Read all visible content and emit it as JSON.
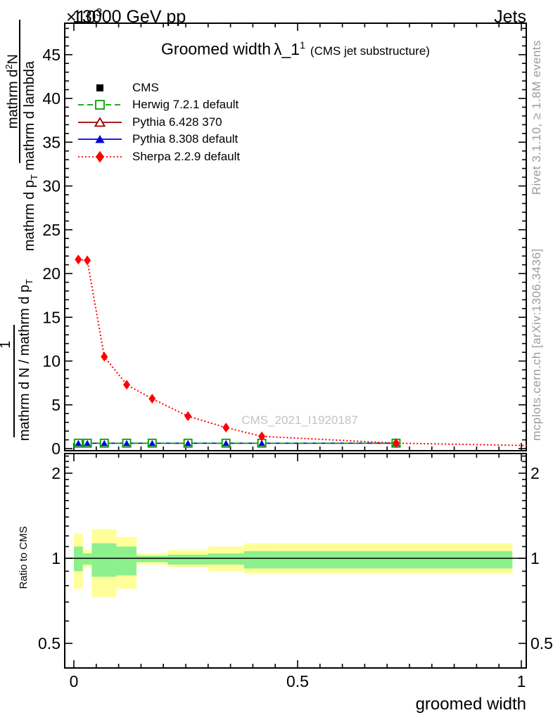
{
  "header": {
    "exponent_base": "×10",
    "exponent_power": "3",
    "beam_label": "13000 GeV pp",
    "right_label": "Jets"
  },
  "plot_title": {
    "prefix": "Groomed width",
    "lambda": "λ_1",
    "lambda_sup": "1",
    "suffix": "(CMS jet substructure)"
  },
  "watermark": "CMS_2021_I1920187",
  "side_notes": {
    "top": "Rivet 3.1.10, ≥ 1.8M events",
    "bottom": "mcplots.cern.ch [arXiv:1306.3436]"
  },
  "ylabel_fractions": {
    "top": {
      "num_pre": "mathrm d",
      "num_sup": "2",
      "num_post": "N",
      "den_pre": "mathrm d p",
      "den_sub": "T",
      "den_post": " mathrm d lambda"
    },
    "bottom": {
      "num": "1",
      "den_pre": "mathrm d N / mathrm d p",
      "den_sub": "T"
    }
  },
  "ratio_ylabel": "Ratio to CMS",
  "xlabel": "groomed width",
  "chart_data": {
    "type": "line",
    "title": "Groomed width λ_1^1 (CMS jet substructure)",
    "xlabel": "groomed width",
    "ylabel": "1 / (mathrm d N / mathrm d p_T) · mathrm d^2 N / (mathrm d p_T mathrm d lambda)",
    "scale_note": "×10^3",
    "xlim": [
      -0.021,
      1.021
    ],
    "ylim_main": [
      0,
      48.6
    ],
    "ylim_ratio": [
      0.41,
      2.36
    ],
    "ratio_scale": "log",
    "grid": false,
    "legend_position": "upper-left",
    "x_ticks": {
      "major": [
        0,
        0.5,
        1
      ],
      "labels": [
        "0",
        "0.5",
        "1"
      ],
      "minor_step": 0.05
    },
    "y_ticks_main": {
      "major": [
        0,
        5,
        10,
        15,
        20,
        25,
        30,
        35,
        40,
        45
      ],
      "labels": [
        "0",
        "5",
        "10",
        "15",
        "20",
        "25",
        "30",
        "35",
        "40",
        "45"
      ],
      "minor_step": 1
    },
    "y_ticks_ratio": {
      "major": [
        0.5,
        1,
        2
      ],
      "labels": [
        "0.5",
        "1",
        "2"
      ]
    },
    "bin_edges": [
      0,
      0.02,
      0.04,
      0.095,
      0.14,
      0.21,
      0.3,
      0.38,
      0.46,
      0.98
    ],
    "bin_centers": [
      0.01,
      0.03,
      0.068,
      0.118,
      0.175,
      0.255,
      0.34,
      0.42,
      0.72
    ],
    "series": [
      {
        "name": "CMS",
        "color": "#000000",
        "marker": "square-filled",
        "line": "none",
        "values": [
          0.45,
          0.45,
          0.45,
          0.45,
          0.45,
          0.45,
          0.45,
          0.45,
          0.45
        ]
      },
      {
        "name": "Herwig 7.2.1 default",
        "color": "#00a000",
        "marker": "square-open",
        "line": "dashed",
        "values": [
          0.62,
          0.62,
          0.62,
          0.62,
          0.62,
          0.62,
          0.62,
          0.62,
          0.62
        ]
      },
      {
        "name": "Pythia 6.428 370",
        "color": "#990000",
        "marker": "triangle-open",
        "line": "solid",
        "values": [
          0.62,
          0.62,
          0.62,
          0.62,
          0.62,
          0.62,
          0.62,
          0.62,
          0.62
        ]
      },
      {
        "name": "Pythia 8.308 default",
        "color": "#0000dd",
        "marker": "triangle-filled",
        "line": "solid",
        "values": [
          0.62,
          0.62,
          0.62,
          0.62,
          0.62,
          0.62,
          0.62,
          0.62,
          0.62
        ]
      },
      {
        "name": "Sherpa 2.2.9 default",
        "color": "#ff0000",
        "marker": "diamond-filled",
        "line": "dotted",
        "values": [
          21.6,
          21.5,
          10.5,
          7.3,
          5.7,
          3.7,
          2.4,
          1.4,
          0.62
        ]
      }
    ],
    "ratio_bands": {
      "yellow_color": "#ffff9a",
      "green_color": "#8cf08c",
      "unity_line": 1,
      "yellow": [
        [
          0.78,
          1.22
        ],
        [
          0.93,
          1.07
        ],
        [
          0.73,
          1.27
        ],
        [
          0.78,
          1.19
        ],
        [
          0.95,
          1.04
        ],
        [
          0.93,
          1.07
        ],
        [
          0.9,
          1.1
        ],
        [
          0.88,
          1.13
        ],
        [
          0.88,
          1.13
        ]
      ],
      "green": [
        [
          0.9,
          1.1
        ],
        [
          0.95,
          1.04
        ],
        [
          0.86,
          1.13
        ],
        [
          0.87,
          1.1
        ],
        [
          0.97,
          1.02
        ],
        [
          0.95,
          1.03
        ],
        [
          0.95,
          1.04
        ],
        [
          0.92,
          1.06
        ],
        [
          0.92,
          1.06
        ]
      ]
    }
  }
}
